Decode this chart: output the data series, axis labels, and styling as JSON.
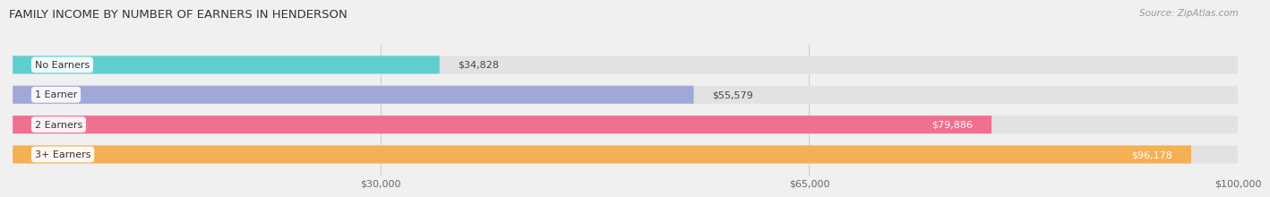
{
  "title": "FAMILY INCOME BY NUMBER OF EARNERS IN HENDERSON",
  "source": "Source: ZipAtlas.com",
  "categories": [
    "No Earners",
    "1 Earner",
    "2 Earners",
    "3+ Earners"
  ],
  "values": [
    34828,
    55579,
    79886,
    96178
  ],
  "bar_colors": [
    "#5ecfcf",
    "#a0a8d8",
    "#f07090",
    "#f5b055"
  ],
  "x_min": 0,
  "x_max": 100000,
  "x_ticks": [
    30000,
    65000,
    100000
  ],
  "x_tick_labels": [
    "$30,000",
    "$65,000",
    "$100,000"
  ],
  "bar_height": 0.6,
  "background_color": "#f0f0f0",
  "bar_bg_color": "#e2e2e2",
  "title_fontsize": 9.5,
  "source_fontsize": 7.5,
  "label_fontsize": 8,
  "category_fontsize": 8
}
